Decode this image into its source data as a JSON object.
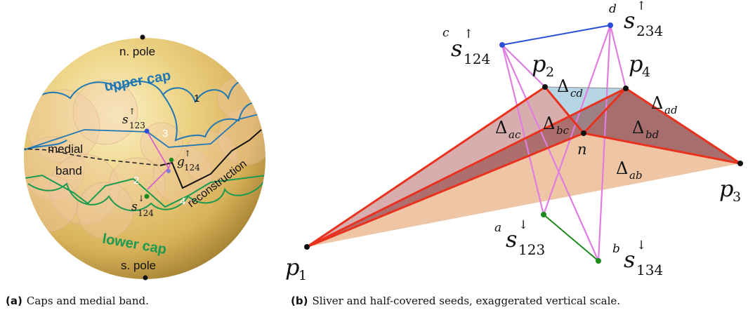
{
  "panel_a": {
    "n_pole": "n. pole",
    "s_pole": "s. pole",
    "upper_cap": "upper cap",
    "lower_cap": "lower cap",
    "medial": "medial",
    "band": "band",
    "reconstruction": "reconstruction",
    "region_1": "1",
    "region_2": "2",
    "region_3": "3",
    "region_4": "4",
    "s123_base": "s",
    "s123_arrow": "↑",
    "s123_sub": "123",
    "g124_base": "g",
    "g124_arrow": "↑",
    "g124_sub": "124",
    "s124_base": "s",
    "s124_arrow": "↓",
    "s124_sub": "124",
    "caption_tag": "(a)",
    "caption": "Caps and medial band.",
    "colors": {
      "upper": "#1f78b4",
      "lower": "#1a9a50",
      "sphere": "#e4c36a"
    }
  },
  "panel_b": {
    "p1": "p",
    "p1_sub": "1",
    "p2": "p",
    "p2_sub": "2",
    "p3": "p",
    "p3_sub": "3",
    "p4": "p",
    "p4_sub": "4",
    "n": "n",
    "c": "c",
    "d": "d",
    "a": "a",
    "b": "b",
    "s_base": "s",
    "up": "↑",
    "down": "↓",
    "sub_124": "124",
    "sub_234": "234",
    "sub_123": "123",
    "sub_134": "134",
    "delta": "Δ",
    "ac": "ac",
    "bc": "bc",
    "cd": "cd",
    "ad": "ad",
    "bd": "bd",
    "ab": "ab",
    "caption_tag": "(b)",
    "caption": "Sliver and half-covered seeds, exaggerated vertical scale.",
    "colors": {
      "edge": "#e8321e",
      "magenta": "#e07ee0",
      "blue": "#2a4fd6",
      "green": "#1d8a1d"
    }
  }
}
